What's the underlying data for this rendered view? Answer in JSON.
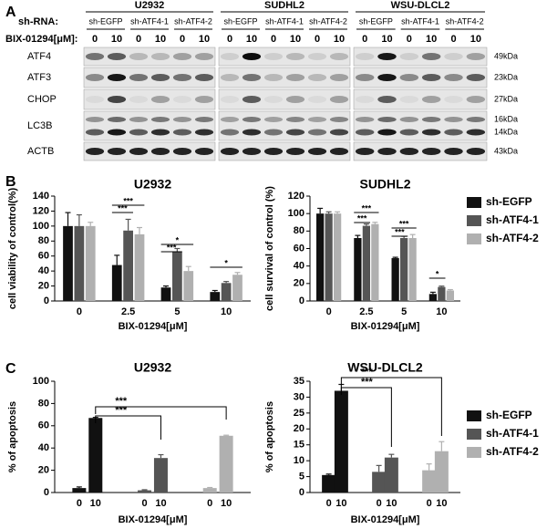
{
  "panel_labels": [
    "A",
    "B",
    "C"
  ],
  "blot": {
    "cell_lines": [
      "U2932",
      "SUDHL2",
      "WSU-DLCL2"
    ],
    "shrna_label": "sh-RNA:",
    "lanes": [
      [
        "sh-EGFP",
        "sh-ATF4-1",
        "sh-ATF4-2"
      ],
      [
        "sh-EGFP",
        "sh-ATF4-1",
        "sh-ATF4-2"
      ],
      [
        "sh-EGFP",
        "sh-ATF4-1",
        "sh-ATF4-2"
      ]
    ],
    "dose_label": "BIX-01294[μM]:",
    "doses": [
      [
        0,
        10,
        0,
        10,
        0,
        10
      ],
      [
        0,
        10,
        0,
        10,
        0,
        10
      ],
      [
        0,
        10,
        0,
        10,
        0,
        10
      ]
    ],
    "rows": [
      "ATF4",
      "ATF3",
      "CHOP",
      "LC3B",
      "ACTB"
    ],
    "markers": [
      "49kDa",
      "23kDa",
      "27kDa",
      "16kDa",
      "14kDa",
      "43kDa"
    ]
  },
  "chart_data": [
    {
      "type": "bar",
      "title": "U2932",
      "xlabel": "BIX-01294[μM]",
      "ylabel": "cell viability of control(%)",
      "categories": [
        0,
        2.5,
        5,
        10
      ],
      "ylim": [
        0,
        140
      ],
      "yticks": [
        0,
        20,
        40,
        60,
        80,
        100,
        120,
        140
      ],
      "series": [
        {
          "color": "#111111",
          "values": [
            100,
            48,
            18,
            12
          ],
          "errors": [
            18,
            13,
            2,
            2
          ]
        },
        {
          "color": "#555555",
          "values": [
            100,
            94,
            66,
            24
          ],
          "errors": [
            15,
            15,
            4,
            2
          ]
        },
        {
          "color": "#b0b0b0",
          "values": [
            100,
            89,
            40,
            35
          ],
          "errors": [
            5,
            9,
            6,
            3
          ]
        }
      ],
      "annotations": [
        "***",
        "***",
        "*",
        "***",
        "*"
      ]
    },
    {
      "type": "bar",
      "title": "SUDHL2",
      "xlabel": "BIX-01294[μM]",
      "ylabel": "cell survival of control (%)",
      "categories": [
        0,
        2.5,
        5,
        10
      ],
      "ylim": [
        0,
        120
      ],
      "yticks": [
        0,
        20,
        40,
        60,
        80,
        100,
        120
      ],
      "series": [
        {
          "name": "sh-EGFP",
          "color": "#111111",
          "values": [
            100,
            72,
            49,
            8
          ],
          "errors": [
            6,
            3,
            1,
            2
          ]
        },
        {
          "name": "sh-ATF4-1",
          "color": "#555555",
          "values": [
            100,
            86,
            72,
            16
          ],
          "errors": [
            2,
            2,
            2,
            1
          ]
        },
        {
          "name": "sh-ATF4-2",
          "color": "#b0b0b0",
          "values": [
            100,
            88,
            72,
            12
          ],
          "errors": [
            2,
            2,
            4,
            1
          ]
        }
      ],
      "annotations": [
        "***",
        "***",
        "***",
        "***",
        "*"
      ],
      "legend": "right"
    },
    {
      "type": "bar",
      "title": "U2932",
      "xlabel": "BIX-01294[μM]",
      "ylabel": "% of apoptosis",
      "categories": [
        0,
        10,
        0,
        10,
        0,
        10
      ],
      "ylim": [
        0,
        100
      ],
      "yticks": [
        0,
        20,
        40,
        60,
        80,
        100
      ],
      "series": [
        {
          "color": "#111111",
          "values": [
            4,
            67,
            null,
            null,
            null,
            null
          ],
          "errors": [
            1,
            0.5,
            null,
            null,
            null,
            null
          ]
        },
        {
          "color": "#555555",
          "values": [
            null,
            null,
            2,
            31,
            null,
            null
          ],
          "errors": [
            null,
            null,
            0.5,
            3,
            null,
            null
          ]
        },
        {
          "color": "#b0b0b0",
          "values": [
            null,
            null,
            null,
            null,
            4,
            51
          ],
          "errors": [
            null,
            null,
            null,
            null,
            0.5,
            0.5
          ]
        }
      ],
      "annotations": [
        "***",
        "***"
      ]
    },
    {
      "type": "bar",
      "title": "WSU-DLCL2",
      "xlabel": "BIX-01294[μM]",
      "ylabel": "% of apoptosis",
      "categories": [
        0,
        10,
        0,
        10,
        0,
        10
      ],
      "ylim": [
        0,
        35
      ],
      "yticks": [
        0,
        5,
        10,
        15,
        20,
        25,
        30,
        35
      ],
      "series": [
        {
          "name": "sh-EGFP",
          "color": "#111111",
          "values": [
            5.5,
            32,
            null,
            null,
            null,
            null
          ],
          "errors": [
            0.3,
            2,
            null,
            null,
            null,
            null
          ]
        },
        {
          "name": "sh-ATF4-1",
          "color": "#555555",
          "values": [
            null,
            null,
            6.5,
            11,
            null,
            null
          ],
          "errors": [
            null,
            null,
            2,
            1,
            null,
            null
          ]
        },
        {
          "name": "sh-ATF4-2",
          "color": "#b0b0b0",
          "values": [
            null,
            null,
            null,
            null,
            7,
            13
          ],
          "errors": [
            null,
            null,
            null,
            null,
            2,
            3
          ]
        }
      ],
      "annotations": [
        "***",
        "***"
      ],
      "legend": "right"
    }
  ]
}
